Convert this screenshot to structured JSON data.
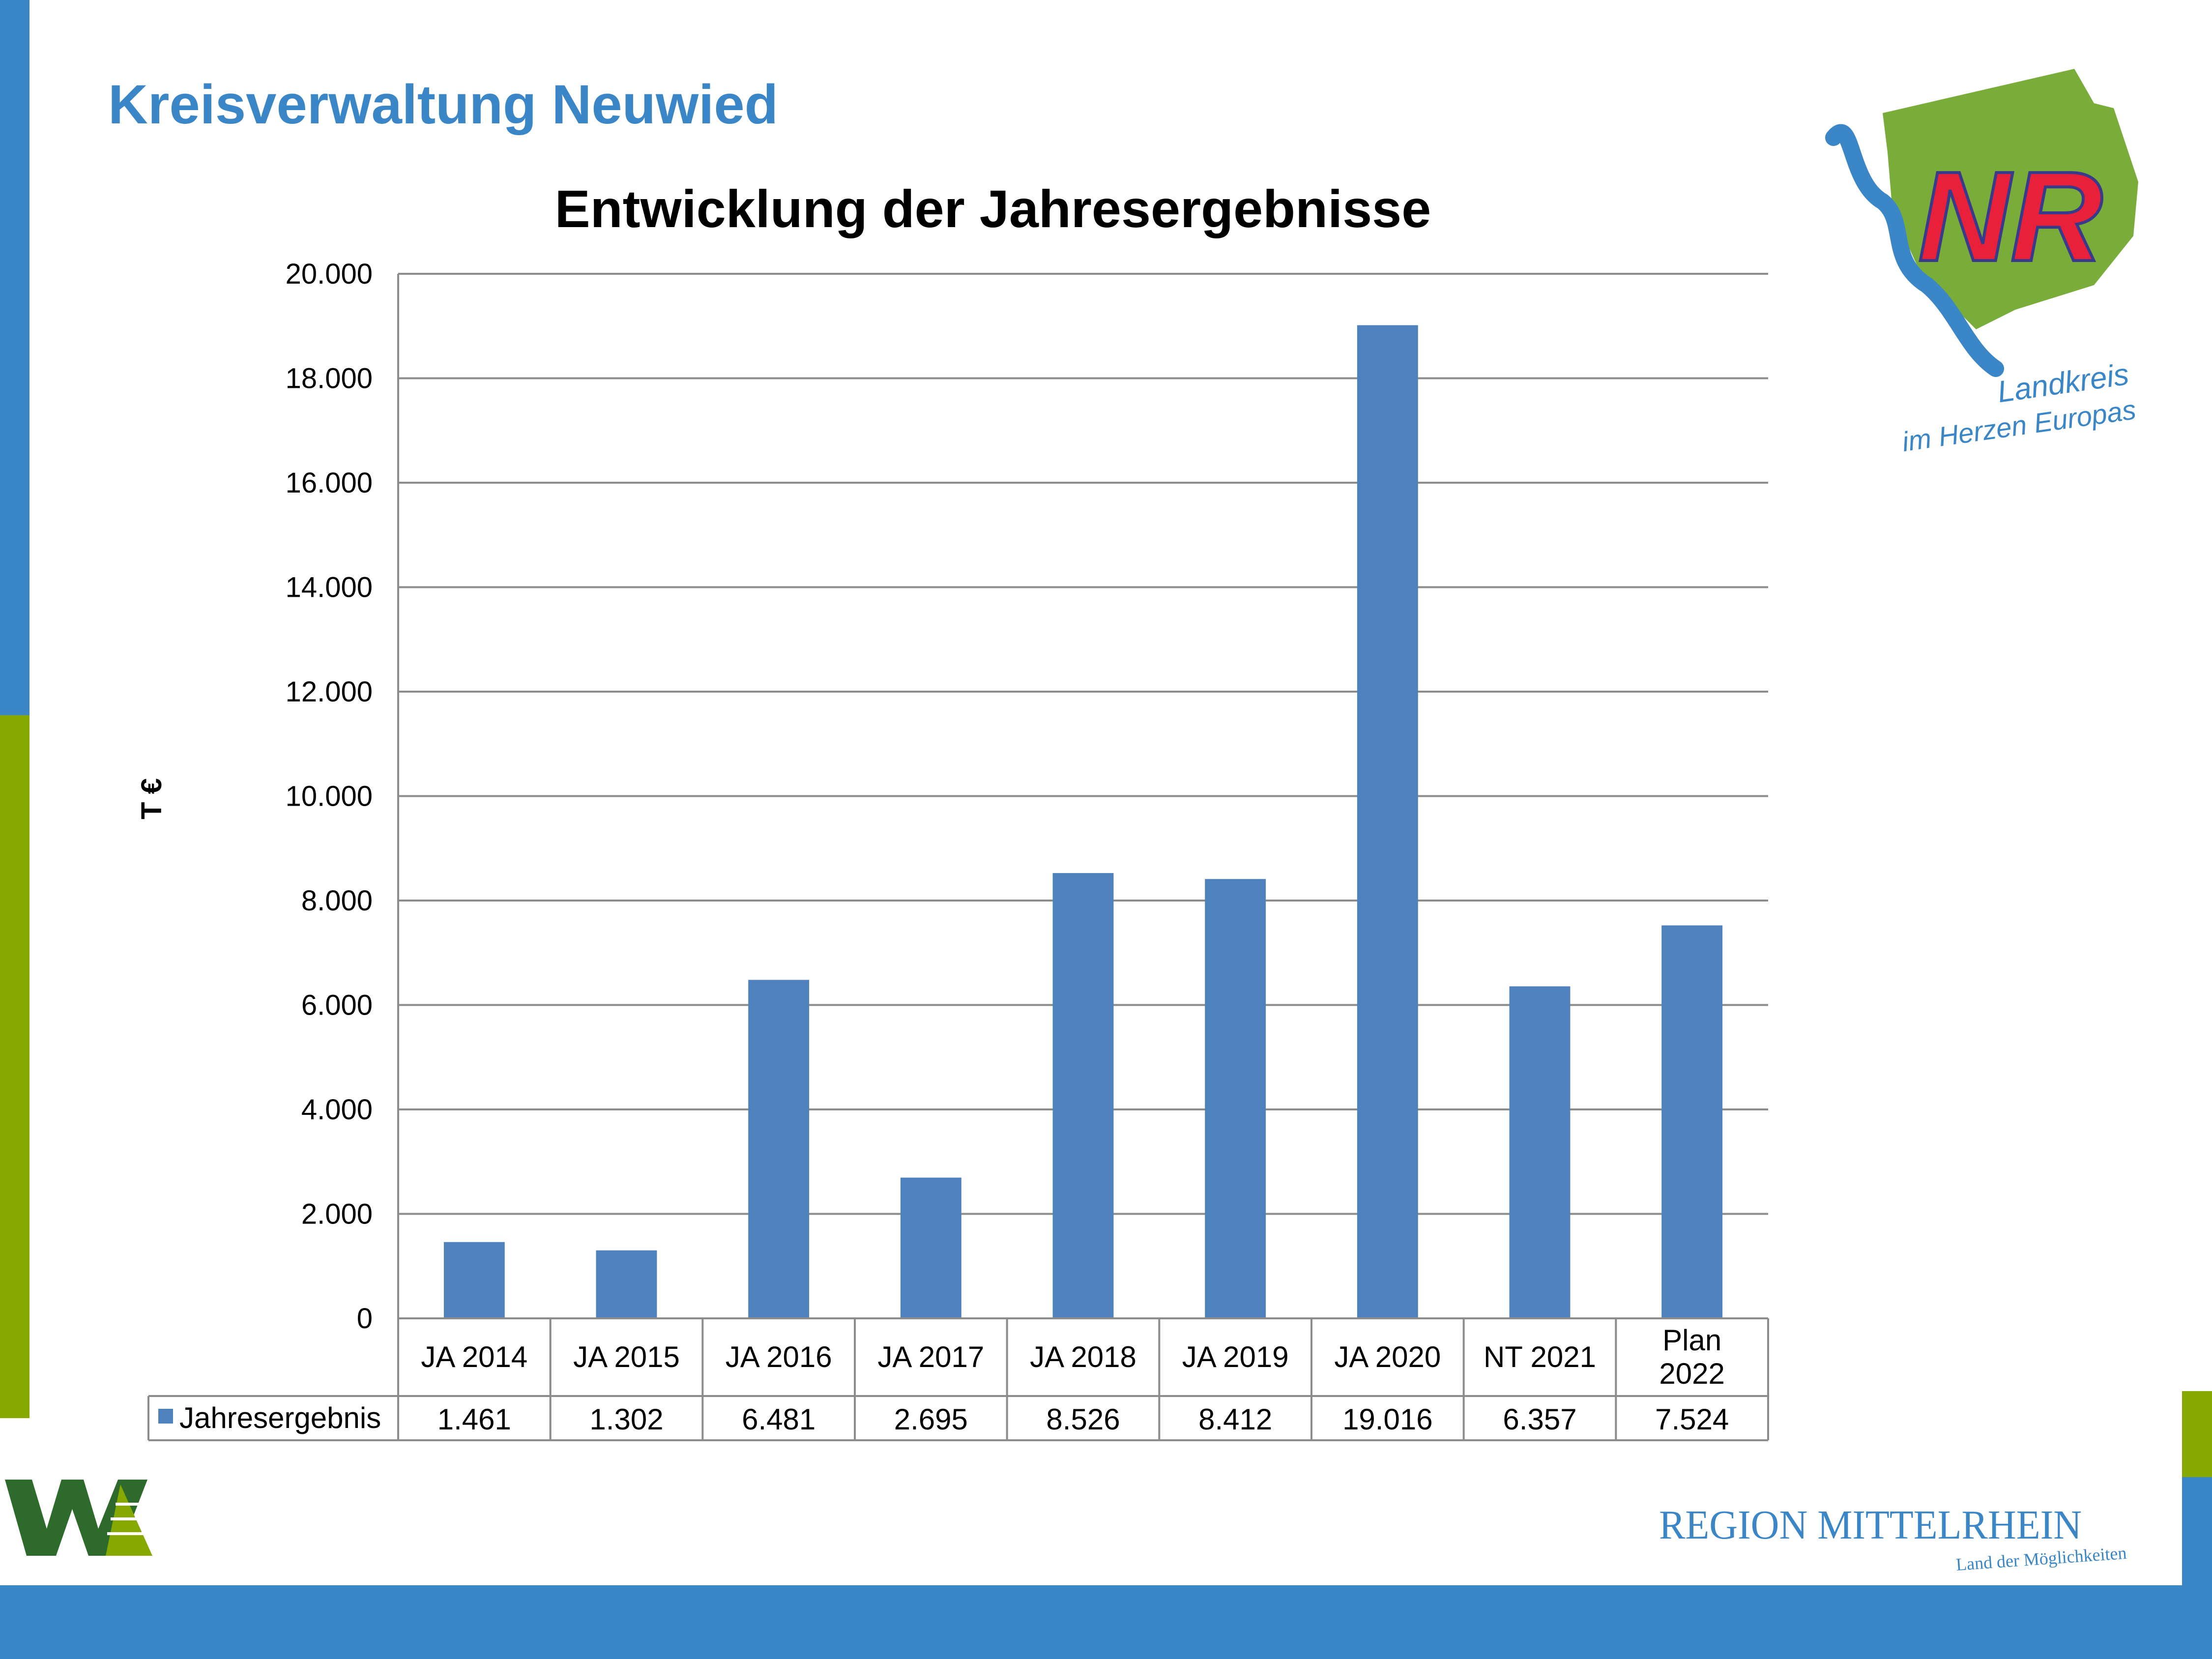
{
  "header": {
    "org_title": "Kreisverwaltung Neuwied"
  },
  "logos": {
    "landkreis_line1": "Landkreis",
    "landkreis_line2": "im Herzen Europas",
    "landkreis_initials": "NR",
    "region_name": "REGION MITTELRHEIN",
    "region_tagline": "Land der Möglichkeiten"
  },
  "colors": {
    "accent_blue": "#3a86c6",
    "accent_green": "#86a900",
    "bar": "#4f81bd",
    "logo_green": "#7aac3a",
    "logo_red": "#e8203a",
    "dark_green": "#2e6a2b"
  },
  "chart_data": {
    "type": "bar",
    "title": "Entwicklung der Jahresergebnisse",
    "ylabel": "T €",
    "ylim": [
      0,
      20000
    ],
    "yticks": [
      "0",
      "2.000",
      "4.000",
      "6.000",
      "8.000",
      "10.000",
      "12.000",
      "14.000",
      "16.000",
      "18.000",
      "20.000"
    ],
    "categories": [
      [
        "JA 2014"
      ],
      [
        "JA 2015"
      ],
      [
        "JA 2016"
      ],
      [
        "JA 2017"
      ],
      [
        "JA 2018"
      ],
      [
        "JA 2019"
      ],
      [
        "JA 2020"
      ],
      [
        "NT 2021"
      ],
      [
        "Plan",
        "2022"
      ]
    ],
    "series": [
      {
        "name": "Jahresergebnis",
        "values": [
          1461,
          1302,
          6481,
          2695,
          8526,
          8412,
          19016,
          6357,
          7524
        ],
        "labels": [
          "1.461",
          "1.302",
          "6.481",
          "2.695",
          "8.526",
          "8.412",
          "19.016",
          "6.357",
          "7.524"
        ]
      }
    ],
    "grid": true,
    "legend": "data-table"
  }
}
